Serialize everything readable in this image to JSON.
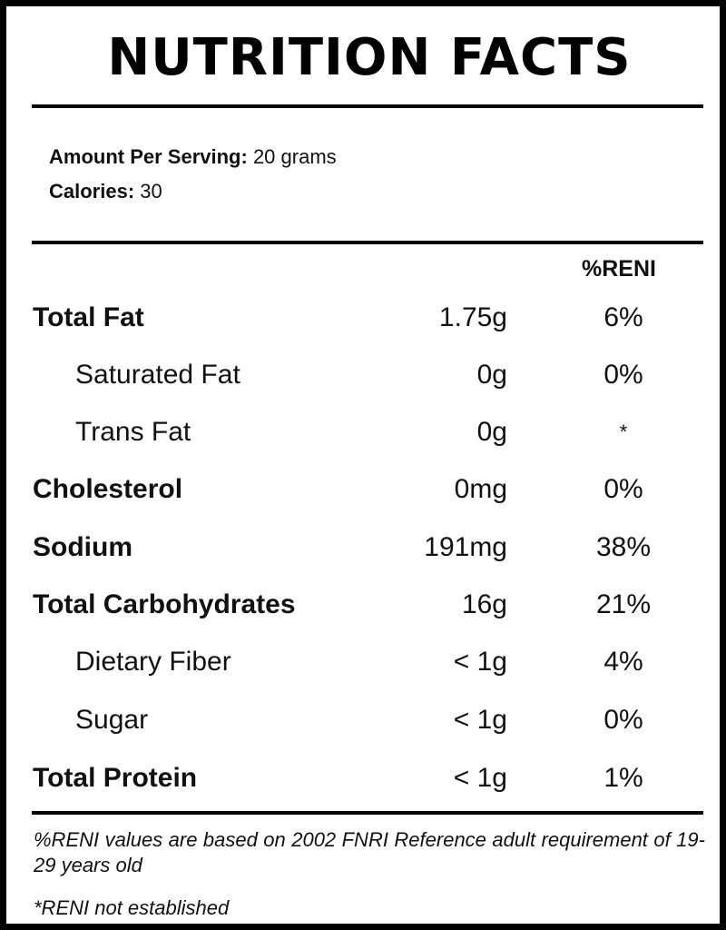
{
  "title": "NUTRITION FACTS",
  "serving": {
    "label": "Amount Per Serving:",
    "value": "20 grams"
  },
  "calories": {
    "label": "Calories:",
    "value": "30"
  },
  "column_header": "%RENI",
  "rows": [
    {
      "name": "Total Fat",
      "amount": "1.75g",
      "reni": "6%",
      "level": "main"
    },
    {
      "name": "Saturated Fat",
      "amount": "0g",
      "reni": "0%",
      "level": "sub"
    },
    {
      "name": "Trans Fat",
      "amount": "0g",
      "reni": "*",
      "level": "sub"
    },
    {
      "name": "Cholesterol",
      "amount": "0mg",
      "reni": "0%",
      "level": "main"
    },
    {
      "name": "Sodium",
      "amount": "191mg",
      "reni": "38%",
      "level": "main"
    },
    {
      "name": "Total Carbohydrates",
      "amount": "16g",
      "reni": "21%",
      "level": "main"
    },
    {
      "name": "Dietary Fiber",
      "amount": "< 1g",
      "reni": "4%",
      "level": "sub"
    },
    {
      "name": "Sugar",
      "amount": "< 1g",
      "reni": "0%",
      "level": "sub"
    },
    {
      "name": "Total Protein",
      "amount": "< 1g",
      "reni": "1%",
      "level": "main"
    }
  ],
  "footnotes": {
    "reni_basis": "%RENI values are based on 2002 FNRI Reference adult requirement of 19-29 years old",
    "not_established": "*RENI not established"
  }
}
